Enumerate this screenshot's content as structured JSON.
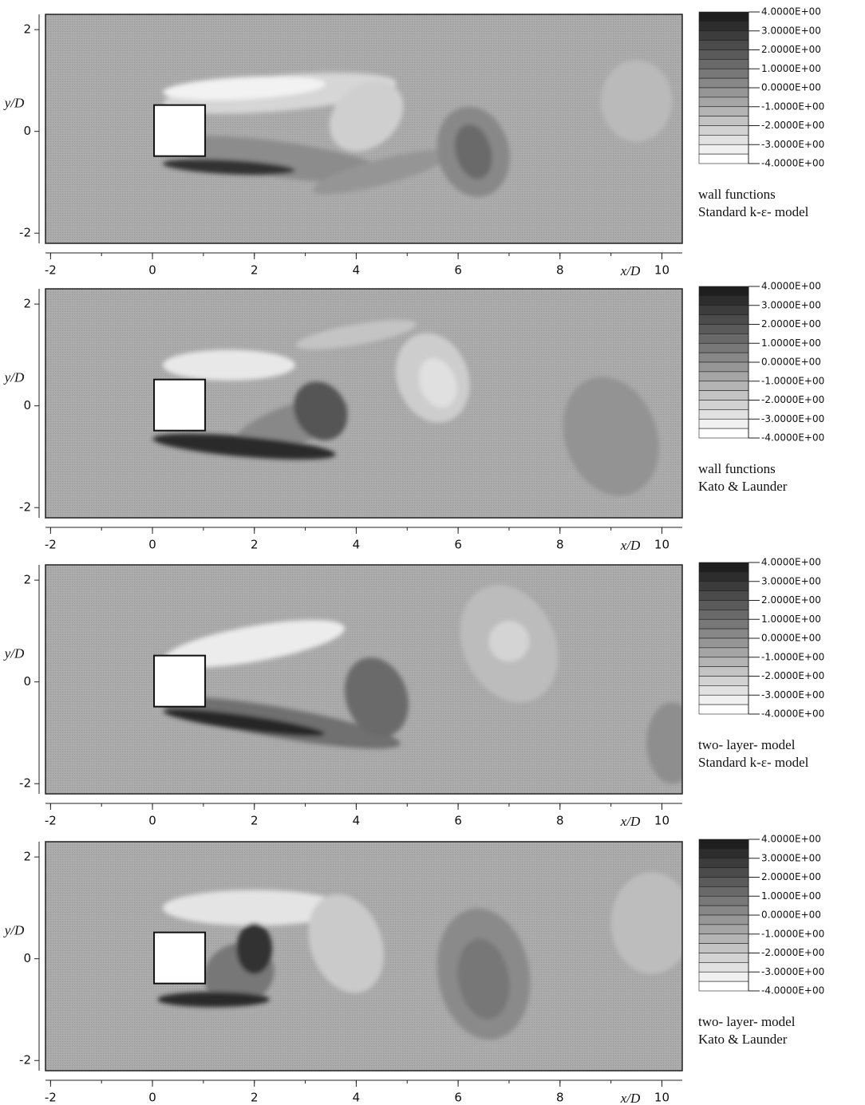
{
  "chart_data": [
    {
      "type": "contour",
      "xlim": [
        -2.1,
        10.4
      ],
      "ylim": [
        -2.2,
        2.3
      ],
      "xticks": [
        -2,
        0,
        2,
        4,
        6,
        8,
        10
      ],
      "yticks": [
        -2,
        0,
        2
      ],
      "xlabel": "x/D",
      "ylabel": "y/D",
      "colorbar": {
        "lim": [
          -4,
          4
        ],
        "ticks": [
          {
            "value": 4,
            "label": "4.0000E+00"
          },
          {
            "value": 3,
            "label": "3.0000E+00"
          },
          {
            "value": 2,
            "label": "2.0000E+00"
          },
          {
            "value": 1,
            "label": "1.0000E+00"
          },
          {
            "value": 0,
            "label": "0.0000E+00"
          },
          {
            "value": -1,
            "label": "-1.0000E+00"
          },
          {
            "value": -2,
            "label": "-2.0000E+00"
          },
          {
            "value": -3,
            "label": "-3.0000E+00"
          },
          {
            "value": -4,
            "label": "-4.0000E+00"
          }
        ]
      },
      "caption": [
        "wall functions",
        "Standard k-ε- model"
      ]
    },
    {
      "type": "contour",
      "xlim": [
        -2.1,
        10.4
      ],
      "ylim": [
        -2.2,
        2.3
      ],
      "xticks": [
        -2,
        0,
        2,
        4,
        6,
        8,
        10
      ],
      "yticks": [
        -2,
        0,
        2
      ],
      "xlabel": "x/D",
      "ylabel": "y/D",
      "colorbar": {
        "lim": [
          -4,
          4
        ],
        "ticks": [
          {
            "value": 4,
            "label": "4.0000E+00"
          },
          {
            "value": 3,
            "label": "3.0000E+00"
          },
          {
            "value": 2,
            "label": "2.0000E+00"
          },
          {
            "value": 1,
            "label": "1.0000E+00"
          },
          {
            "value": 0,
            "label": "0.0000E+00"
          },
          {
            "value": -1,
            "label": "-1.0000E+00"
          },
          {
            "value": -2,
            "label": "-2.0000E+00"
          },
          {
            "value": -3,
            "label": "-3.0000E+00"
          },
          {
            "value": -4,
            "label": "-4.0000E+00"
          }
        ]
      },
      "caption": [
        "wall functions",
        "Kato & Launder"
      ]
    },
    {
      "type": "contour",
      "xlim": [
        -2.1,
        10.4
      ],
      "ylim": [
        -2.2,
        2.3
      ],
      "xticks": [
        -2,
        0,
        2,
        4,
        6,
        8,
        10
      ],
      "yticks": [
        -2,
        0,
        2
      ],
      "xlabel": "x/D",
      "ylabel": "y/D",
      "colorbar": {
        "lim": [
          -4,
          4
        ],
        "ticks": [
          {
            "value": 4,
            "label": "4.0000E+00"
          },
          {
            "value": 3,
            "label": "3.0000E+00"
          },
          {
            "value": 2,
            "label": "2.0000E+00"
          },
          {
            "value": 1,
            "label": "1.0000E+00"
          },
          {
            "value": 0,
            "label": "0.0000E+00"
          },
          {
            "value": -1,
            "label": "-1.0000E+00"
          },
          {
            "value": -2,
            "label": "-2.0000E+00"
          },
          {
            "value": -3,
            "label": "-3.0000E+00"
          },
          {
            "value": -4,
            "label": "-4.0000E+00"
          }
        ]
      },
      "caption": [
        "two- layer- model",
        "Standard k-ε- model"
      ]
    },
    {
      "type": "contour",
      "xlim": [
        -2.1,
        10.4
      ],
      "ylim": [
        -2.2,
        2.3
      ],
      "xticks": [
        -2,
        0,
        2,
        4,
        6,
        8,
        10
      ],
      "yticks": [
        -2,
        0,
        2
      ],
      "xlabel": "x/D",
      "ylabel": "y/D",
      "colorbar": {
        "lim": [
          -4,
          4
        ],
        "ticks": [
          {
            "value": 4,
            "label": "4.0000E+00"
          },
          {
            "value": 3,
            "label": "3.0000E+00"
          },
          {
            "value": 2,
            "label": "2.0000E+00"
          },
          {
            "value": 1,
            "label": "1.0000E+00"
          },
          {
            "value": 0,
            "label": "0.0000E+00"
          },
          {
            "value": -1,
            "label": "-1.0000E+00"
          },
          {
            "value": -2,
            "label": "-2.0000E+00"
          },
          {
            "value": -3,
            "label": "-3.0000E+00"
          },
          {
            "value": -4,
            "label": "-4.0000E+00"
          }
        ]
      },
      "caption": [
        "two- layer- model",
        "Kato & Launder"
      ]
    }
  ]
}
